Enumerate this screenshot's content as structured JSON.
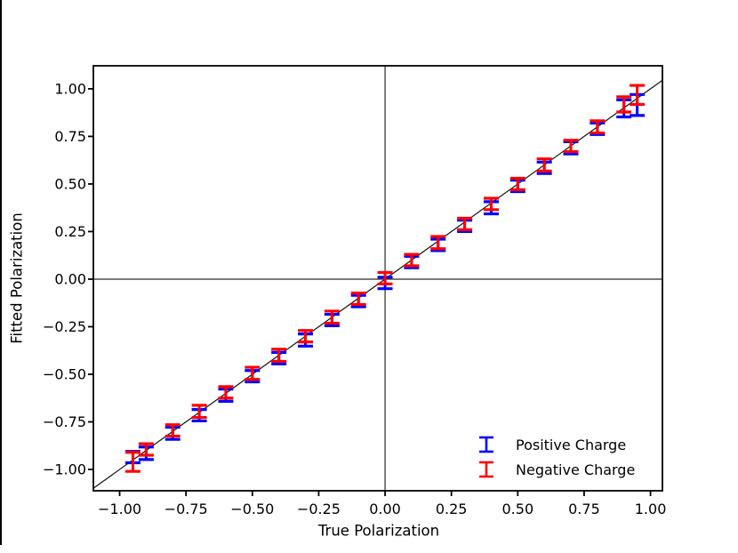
{
  "chart_data": {
    "type": "scatter",
    "subtype": "errorbar",
    "title": "",
    "xlabel": "True Polarization",
    "ylabel": "Fitted Polarization",
    "xlim": [
      -1.099,
      1.045
    ],
    "ylim": [
      -1.112,
      1.121
    ],
    "grid": false,
    "x_ticks": [
      -1.0,
      -0.75,
      -0.5,
      -0.25,
      0.0,
      0.25,
      0.5,
      0.75,
      1.0
    ],
    "x_tick_labels": [
      "−1.00",
      "−0.75",
      "−0.50",
      "−0.25",
      "0.00",
      "0.25",
      "0.50",
      "0.75",
      "1.00"
    ],
    "y_ticks": [
      1.0,
      0.75,
      0.5,
      0.25,
      0.0,
      -0.25,
      -0.5,
      -0.75,
      -1.0
    ],
    "y_tick_labels": [
      "1.00",
      "0.75",
      "0.50",
      "0.25",
      "0.00",
      "−0.25",
      "−0.50",
      "−0.75",
      "−1.00"
    ],
    "reference_lines": {
      "horizontal_at_y": 0,
      "vertical_at_x": 0,
      "identity_line": "y = x",
      "color": "#2b2b2b"
    },
    "legend": {
      "position": "lower right",
      "frame": false,
      "entries": [
        {
          "label": "Positive Charge",
          "color": "#0000ff"
        },
        {
          "label": "Negative Charge",
          "color": "#ff0000"
        }
      ]
    },
    "series": [
      {
        "name": "Positive Charge",
        "key": "positive-charge",
        "color": "#0000ff",
        "points": [
          {
            "x": -0.95,
            "y": -0.935,
            "err": 0.03
          },
          {
            "x": -0.9,
            "y": -0.915,
            "err": 0.033
          },
          {
            "x": -0.8,
            "y": -0.81,
            "err": 0.032
          },
          {
            "x": -0.7,
            "y": -0.715,
            "err": 0.03
          },
          {
            "x": -0.6,
            "y": -0.61,
            "err": 0.032
          },
          {
            "x": -0.5,
            "y": -0.51,
            "err": 0.03
          },
          {
            "x": -0.4,
            "y": -0.415,
            "err": 0.03
          },
          {
            "x": -0.3,
            "y": -0.32,
            "err": 0.032
          },
          {
            "x": -0.2,
            "y": -0.215,
            "err": 0.03
          },
          {
            "x": -0.1,
            "y": -0.115,
            "err": 0.03
          },
          {
            "x": 0.0,
            "y": -0.02,
            "err": 0.03
          },
          {
            "x": 0.1,
            "y": 0.09,
            "err": 0.03
          },
          {
            "x": 0.2,
            "y": 0.18,
            "err": 0.03
          },
          {
            "x": 0.3,
            "y": 0.28,
            "err": 0.03
          },
          {
            "x": 0.4,
            "y": 0.375,
            "err": 0.032
          },
          {
            "x": 0.5,
            "y": 0.49,
            "err": 0.03
          },
          {
            "x": 0.6,
            "y": 0.585,
            "err": 0.03
          },
          {
            "x": 0.7,
            "y": 0.69,
            "err": 0.032
          },
          {
            "x": 0.8,
            "y": 0.79,
            "err": 0.03
          },
          {
            "x": 0.9,
            "y": 0.897,
            "err": 0.045
          },
          {
            "x": 0.95,
            "y": 0.915,
            "err": 0.055
          }
        ]
      },
      {
        "name": "Negative Charge",
        "key": "negative-charge",
        "color": "#ff0000",
        "points": [
          {
            "x": -0.95,
            "y": -0.96,
            "err": 0.05
          },
          {
            "x": -0.9,
            "y": -0.895,
            "err": 0.03
          },
          {
            "x": -0.8,
            "y": -0.795,
            "err": 0.03
          },
          {
            "x": -0.7,
            "y": -0.695,
            "err": 0.032
          },
          {
            "x": -0.6,
            "y": -0.595,
            "err": 0.03
          },
          {
            "x": -0.5,
            "y": -0.495,
            "err": 0.032
          },
          {
            "x": -0.4,
            "y": -0.4,
            "err": 0.032
          },
          {
            "x": -0.3,
            "y": -0.3,
            "err": 0.03
          },
          {
            "x": -0.2,
            "y": -0.2,
            "err": 0.032
          },
          {
            "x": -0.1,
            "y": -0.103,
            "err": 0.03
          },
          {
            "x": 0.0,
            "y": 0.005,
            "err": 0.03
          },
          {
            "x": 0.1,
            "y": 0.1,
            "err": 0.03
          },
          {
            "x": 0.2,
            "y": 0.192,
            "err": 0.032
          },
          {
            "x": 0.3,
            "y": 0.29,
            "err": 0.03
          },
          {
            "x": 0.4,
            "y": 0.395,
            "err": 0.03
          },
          {
            "x": 0.5,
            "y": 0.5,
            "err": 0.03
          },
          {
            "x": 0.6,
            "y": 0.6,
            "err": 0.032
          },
          {
            "x": 0.7,
            "y": 0.7,
            "err": 0.03
          },
          {
            "x": 0.8,
            "y": 0.8,
            "err": 0.032
          },
          {
            "x": 0.9,
            "y": 0.918,
            "err": 0.04
          },
          {
            "x": 0.95,
            "y": 0.968,
            "err": 0.05
          }
        ]
      }
    ]
  }
}
